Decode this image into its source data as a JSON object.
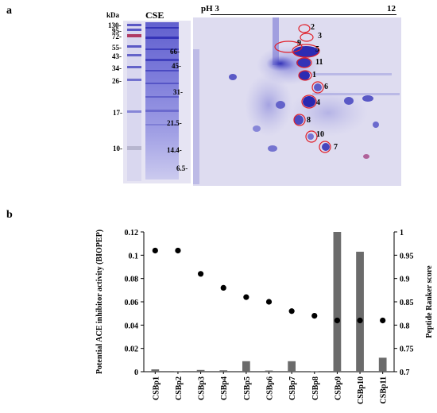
{
  "panel_a": {
    "label": "a",
    "ladder_unit": "kDa",
    "lane_label": "CSE",
    "ladder_marks": [
      "130-",
      "95-",
      "72-",
      "55-",
      "43-",
      "34-",
      "26-",
      "17-",
      "10-"
    ],
    "gel2_marks": [
      "66-",
      "45-",
      "31-",
      "21.5-",
      "14.4-",
      "6.5-"
    ],
    "ph_start": "pH 3",
    "ph_end": "12",
    "spots": [
      "1",
      "2",
      "3",
      "4",
      "5",
      "6",
      "7",
      "8",
      "9",
      "10",
      "11"
    ]
  },
  "panel_b": {
    "label": "b"
  },
  "chart_data": {
    "type": "bar",
    "categories": [
      "CSBp1",
      "CSBp2",
      "CSBp3",
      "CSBp4",
      "CSBp5",
      "CSBp6",
      "CSBp7",
      "CSBp8",
      "CSBp9",
      "CSBp10",
      "CSBp11"
    ],
    "series": [
      {
        "values": [
          0.002,
          0.0005,
          0.0015,
          0.0012,
          0.009,
          0.001,
          0.009,
          0.0002,
          0.12,
          0.103,
          0.012
        ],
        "axis": "left",
        "kind": "bar",
        "color": "#6b6b6b"
      },
      {
        "values": [
          0.96,
          0.96,
          0.91,
          0.88,
          0.86,
          0.85,
          0.83,
          0.82,
          0.81,
          0.81,
          0.81
        ],
        "axis": "right",
        "kind": "scatter",
        "color": "#000000"
      }
    ],
    "ylabel": "Potential ACE inhibitor activity (BIOPEP)",
    "y2label": "Peptide Ranker score",
    "ylim": [
      0,
      0.12
    ],
    "y2lim": [
      0.7,
      1.0
    ],
    "yticks": [
      "0",
      "0.02",
      "0.04",
      "0.06",
      "0.08",
      "0.1",
      "0.12"
    ],
    "y2ticks": [
      "0.7",
      "0.75",
      "0.8",
      "0.85",
      "0.9",
      "0.95",
      "1"
    ],
    "grid": false
  }
}
